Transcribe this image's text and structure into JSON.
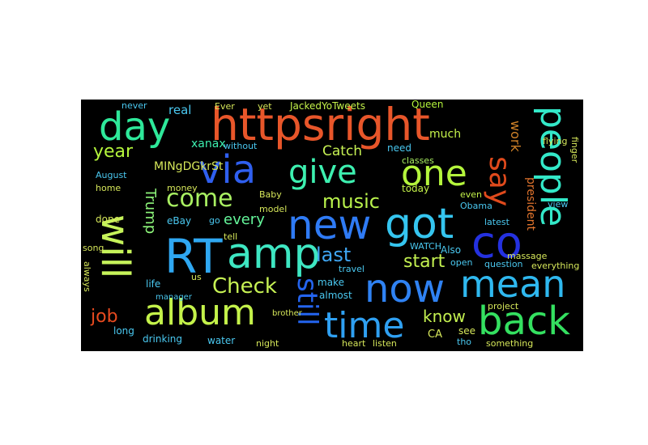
{
  "wordcloud": {
    "background": "#000000",
    "words": {
      "httpsright": "httpsright",
      "day": "day",
      "via": "via",
      "give": "give",
      "one": "one",
      "people": "people",
      "say": "say",
      "co": "co",
      "new": "new",
      "got": "got",
      "rt": "RT",
      "amp": "amp",
      "now": "now",
      "mean": "mean",
      "album": "album",
      "time": "time",
      "back": "back",
      "will": "will",
      "still": "still",
      "come": "come",
      "music": "music",
      "check": "Check",
      "year": "year",
      "last": "last",
      "start": "start",
      "trump": "Trump",
      "know": "know",
      "job": "job",
      "every": "every",
      "work": "work",
      "catch": "Catch",
      "jackedyotweets": "JackedYoTweets",
      "queen": "Queen",
      "xanax": "xanax",
      "mingdgkrst": "MINgDGkrSt",
      "real": "real",
      "ever": "Ever",
      "yet": "yet",
      "never": "never",
      "much": "much",
      "need": "need",
      "classes": "classes",
      "without": "without",
      "august": "August",
      "home": "home",
      "money": "money",
      "baby": "Baby",
      "today": "today",
      "obama": "Obama",
      "president": "president",
      "view": "view",
      "even": "even",
      "latest": "latest",
      "done": "done",
      "ebay": "eBay",
      "go": "go",
      "model": "model",
      "song": "song",
      "tell": "tell",
      "life": "life",
      "us": "us",
      "make": "make",
      "also": "Also",
      "open": "open",
      "question": "question",
      "massage": "massage",
      "everything": "everything",
      "always": "always",
      "long": "long",
      "almost": "almost",
      "travel": "travel",
      "watch": "WATCH",
      "ca": "CA",
      "see": "see",
      "tho": "tho",
      "project": "project",
      "drinking": "drinking",
      "water": "water",
      "night": "night",
      "heart": "heart",
      "listen": "listen",
      "something": "something",
      "flying": "flying",
      "finger": "finger",
      "brother": "brother",
      "manager": "manager"
    }
  }
}
